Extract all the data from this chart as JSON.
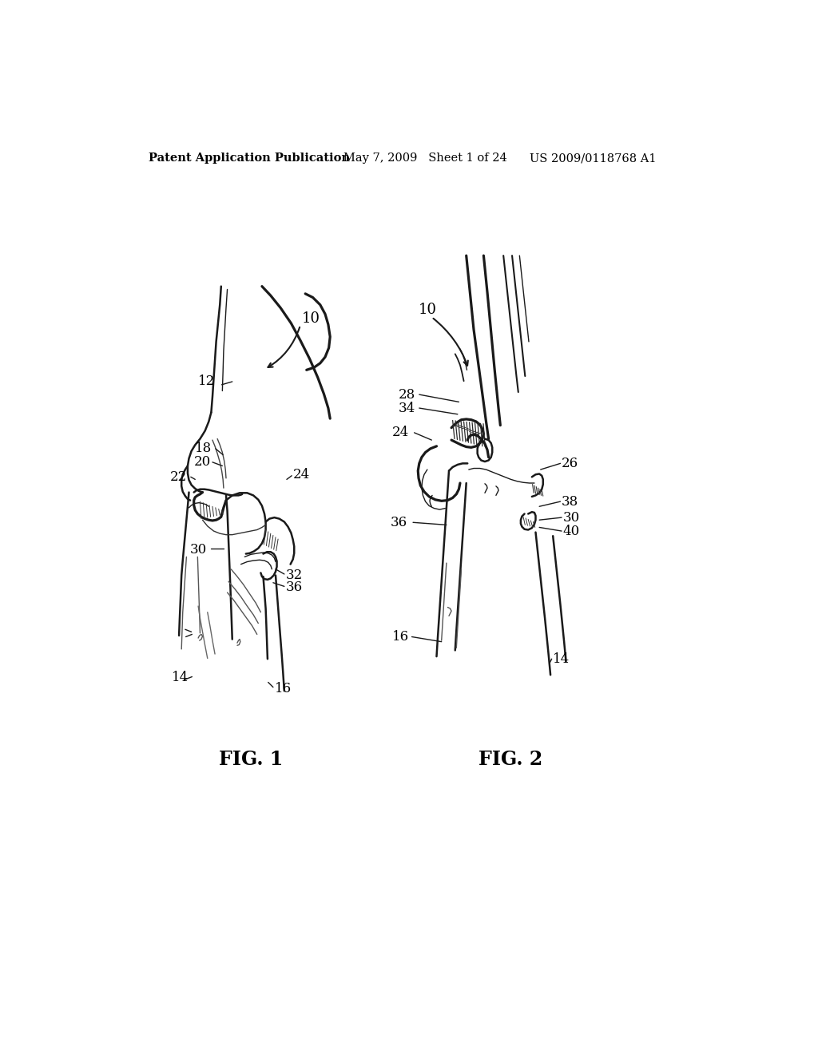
{
  "title_left": "Patent Application Publication",
  "title_center": "May 7, 2009   Sheet 1 of 24",
  "title_right": "US 2009/0118768 A1",
  "fig1_label": "FIG. 1",
  "fig2_label": "FIG. 2",
  "background_color": "#ffffff",
  "text_color": "#000000",
  "header_fontsize": 10.5,
  "fig_label_fontsize": 17,
  "ref_fontsize": 12,
  "line_color": "#1a1a1a",
  "shade_color": "#555555",
  "dark_shade": "#222222"
}
